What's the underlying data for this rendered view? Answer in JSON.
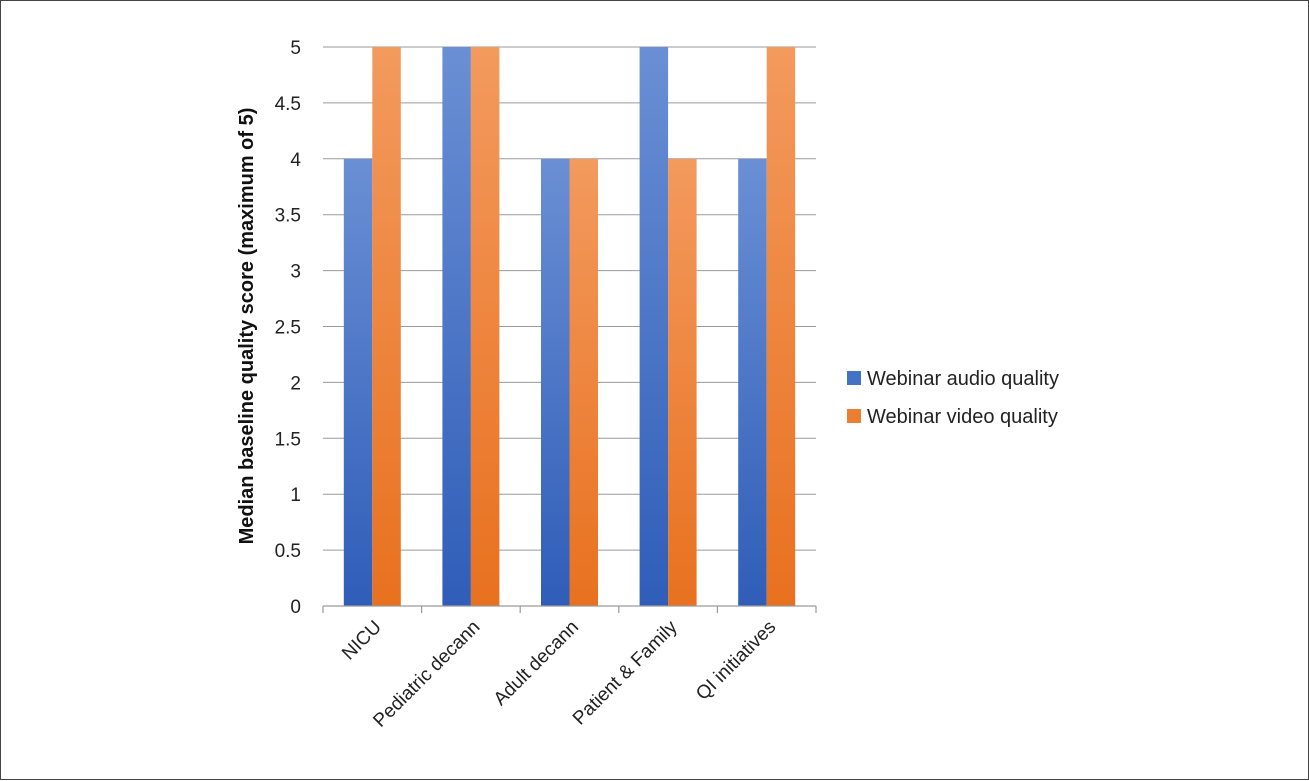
{
  "chart_data": {
    "type": "bar",
    "categories": [
      "NICU",
      "Pediatric decann",
      "Adult decann",
      "Patient & Family",
      "QI initiatives"
    ],
    "series": [
      {
        "name": "Webinar audio quality",
        "values": [
          4,
          5,
          4,
          5,
          4
        ],
        "color": "#4472C4"
      },
      {
        "name": "Webinar video quality",
        "values": [
          5,
          5,
          4,
          4,
          5
        ],
        "color": "#ED7D31"
      }
    ],
    "ylabel": "Median baseline quality score (maximum of 5)",
    "ylim": [
      0,
      5
    ],
    "yticks": [
      "0",
      "0.5",
      "1",
      "1.5",
      "2",
      "2.5",
      "3",
      "3.5",
      "4",
      "4.5",
      "5"
    ],
    "grid": true,
    "legend_position": "right"
  }
}
